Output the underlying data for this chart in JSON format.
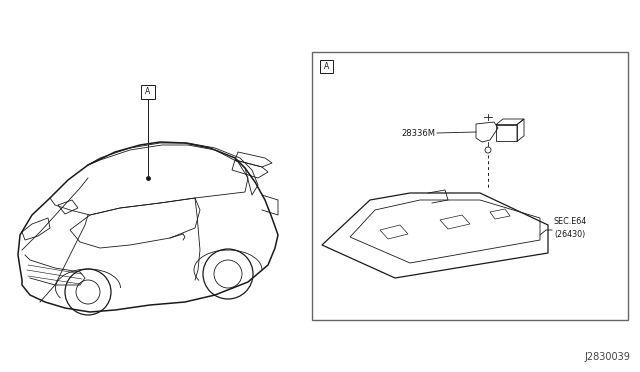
{
  "bg_color": "#ffffff",
  "line_color": "#1a1a1a",
  "part_number_28336M": "28336M",
  "sec_ref": "SEC.E64\n(26430)",
  "part_label_A": "A",
  "doc_number": "J2830039",
  "fig_width": 6.4,
  "fig_height": 3.72
}
